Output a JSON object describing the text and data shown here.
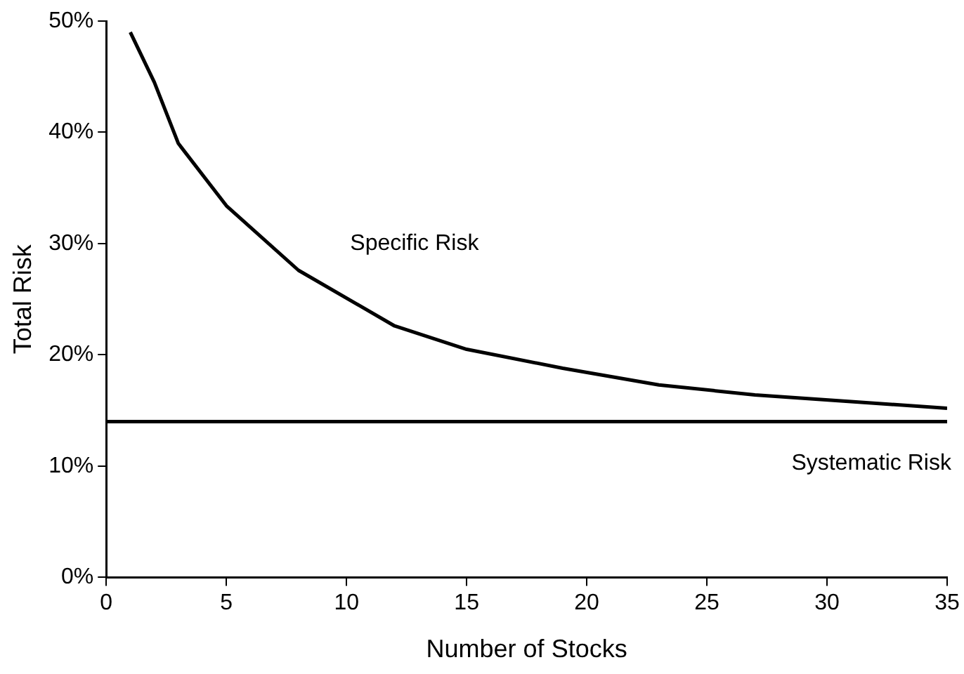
{
  "chart_data": {
    "type": "line",
    "xlabel": "Number of Stocks",
    "ylabel": "Total Risk",
    "xlim": [
      0,
      35
    ],
    "xticks": [
      0,
      5,
      10,
      15,
      20,
      25,
      30,
      35
    ],
    "ylim": [
      0,
      50
    ],
    "yticks": [
      {
        "value": 0,
        "label": "0%"
      },
      {
        "value": 10,
        "label": "10%"
      },
      {
        "value": 20,
        "label": "20%"
      },
      {
        "value": 30,
        "label": "30%"
      },
      {
        "value": 40,
        "label": "40%"
      },
      {
        "value": 50,
        "label": "50%"
      }
    ],
    "grid": false,
    "legend": false,
    "marker": "none",
    "line_style": "solid",
    "series": [
      {
        "name": "Specific Risk",
        "color": "#000000",
        "x": [
          1,
          2,
          3,
          5,
          8,
          12,
          15,
          19,
          23,
          27,
          31,
          35
        ],
        "values": [
          49,
          44.5,
          39,
          33.4,
          27.6,
          22.6,
          20.5,
          18.8,
          17.3,
          16.4,
          15.8,
          15.2
        ]
      },
      {
        "name": "Systematic Risk",
        "color": "#000000",
        "x": [
          0,
          35
        ],
        "values": [
          14,
          14
        ]
      }
    ]
  }
}
